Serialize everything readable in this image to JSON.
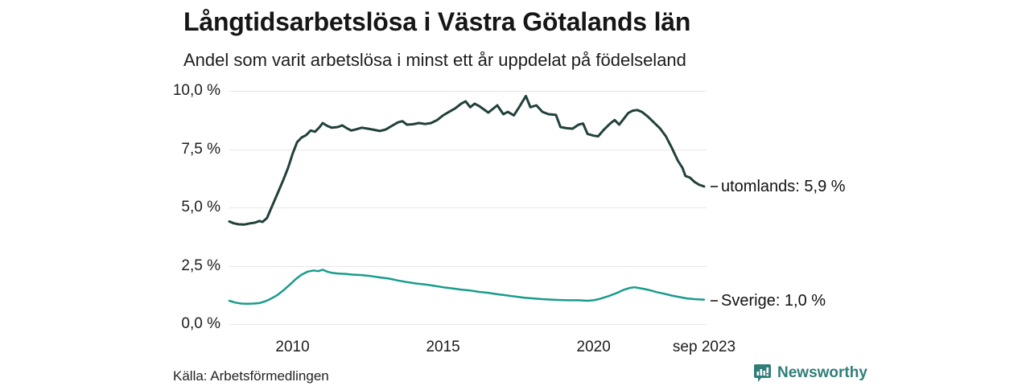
{
  "header": {
    "title": "Långtidsarbetslösa i Västra Götalands län",
    "subtitle": "Andel som varit arbetslösa i minst ett år uppdelat på födelseland"
  },
  "footer": {
    "source": "Källa: Arbetsförmedlingen",
    "brand": "Newsworthy",
    "brand_color": "#2f7e79"
  },
  "chart_data": {
    "type": "line",
    "title": "Långtidsarbetslösa i Västra Götalands län",
    "subtitle": "Andel som varit arbetslösa i minst ett år uppdelat på födelseland",
    "source": "Källa: Arbetsförmedlingen",
    "xlabel": "",
    "ylabel": "",
    "xlim": [
      2007.9,
      2023.75
    ],
    "ylim": [
      0,
      10
    ],
    "grid": "horizontal",
    "grid_color": "#e7e7e7",
    "x_ticks": [
      {
        "label": "2010",
        "year": 2010
      },
      {
        "label": "2015",
        "year": 2015
      },
      {
        "label": "2020",
        "year": 2020
      },
      {
        "label": "sep 2023",
        "year": 2023.67
      }
    ],
    "y_ticks": [
      {
        "label": "0,0 %",
        "value": 0
      },
      {
        "label": "2,5 %",
        "value": 2.5
      },
      {
        "label": "5,0 %",
        "value": 5
      },
      {
        "label": "7,5 %",
        "value": 7.5
      },
      {
        "label": "10,0 %",
        "value": 10
      }
    ],
    "series": [
      {
        "name": "utomlands",
        "label": "utomlands: 5,9 %",
        "end_value": 5.9,
        "color": "#22403b",
        "stroke_width": 3,
        "points": [
          [
            2007.9,
            4.4
          ],
          [
            2008.05,
            4.32
          ],
          [
            2008.2,
            4.28
          ],
          [
            2008.4,
            4.27
          ],
          [
            2008.6,
            4.32
          ],
          [
            2008.75,
            4.35
          ],
          [
            2008.9,
            4.42
          ],
          [
            2009.0,
            4.38
          ],
          [
            2009.15,
            4.55
          ],
          [
            2009.3,
            5.0
          ],
          [
            2009.5,
            5.6
          ],
          [
            2009.7,
            6.2
          ],
          [
            2009.85,
            6.7
          ],
          [
            2010.0,
            7.3
          ],
          [
            2010.15,
            7.8
          ],
          [
            2010.3,
            8.0
          ],
          [
            2010.45,
            8.1
          ],
          [
            2010.6,
            8.3
          ],
          [
            2010.75,
            8.25
          ],
          [
            2010.9,
            8.45
          ],
          [
            2011.0,
            8.62
          ],
          [
            2011.15,
            8.5
          ],
          [
            2011.3,
            8.42
          ],
          [
            2011.5,
            8.45
          ],
          [
            2011.65,
            8.52
          ],
          [
            2011.8,
            8.4
          ],
          [
            2011.95,
            8.3
          ],
          [
            2012.1,
            8.35
          ],
          [
            2012.3,
            8.42
          ],
          [
            2012.5,
            8.38
          ],
          [
            2012.7,
            8.33
          ],
          [
            2012.9,
            8.28
          ],
          [
            2013.1,
            8.35
          ],
          [
            2013.3,
            8.5
          ],
          [
            2013.5,
            8.65
          ],
          [
            2013.65,
            8.7
          ],
          [
            2013.8,
            8.55
          ],
          [
            2014.0,
            8.57
          ],
          [
            2014.2,
            8.62
          ],
          [
            2014.4,
            8.58
          ],
          [
            2014.6,
            8.62
          ],
          [
            2014.8,
            8.75
          ],
          [
            2015.0,
            8.95
          ],
          [
            2015.2,
            9.1
          ],
          [
            2015.4,
            9.25
          ],
          [
            2015.6,
            9.45
          ],
          [
            2015.75,
            9.55
          ],
          [
            2015.9,
            9.3
          ],
          [
            2016.05,
            9.45
          ],
          [
            2016.2,
            9.35
          ],
          [
            2016.5,
            9.07
          ],
          [
            2016.8,
            9.38
          ],
          [
            2017.0,
            9.0
          ],
          [
            2017.15,
            9.1
          ],
          [
            2017.35,
            8.95
          ],
          [
            2017.55,
            9.35
          ],
          [
            2017.75,
            9.78
          ],
          [
            2017.9,
            9.3
          ],
          [
            2018.1,
            9.38
          ],
          [
            2018.3,
            9.1
          ],
          [
            2018.5,
            9.0
          ],
          [
            2018.75,
            8.97
          ],
          [
            2018.9,
            8.45
          ],
          [
            2019.1,
            8.4
          ],
          [
            2019.3,
            8.38
          ],
          [
            2019.5,
            8.55
          ],
          [
            2019.65,
            8.6
          ],
          [
            2019.8,
            8.15
          ],
          [
            2020.0,
            8.08
          ],
          [
            2020.15,
            8.05
          ],
          [
            2020.35,
            8.35
          ],
          [
            2020.55,
            8.6
          ],
          [
            2020.7,
            8.75
          ],
          [
            2020.85,
            8.55
          ],
          [
            2021.0,
            8.8
          ],
          [
            2021.15,
            9.05
          ],
          [
            2021.3,
            9.15
          ],
          [
            2021.45,
            9.18
          ],
          [
            2021.6,
            9.1
          ],
          [
            2021.8,
            8.9
          ],
          [
            2022.0,
            8.65
          ],
          [
            2022.2,
            8.4
          ],
          [
            2022.4,
            8.05
          ],
          [
            2022.6,
            7.55
          ],
          [
            2022.8,
            7.0
          ],
          [
            2022.95,
            6.7
          ],
          [
            2023.05,
            6.35
          ],
          [
            2023.2,
            6.28
          ],
          [
            2023.35,
            6.1
          ],
          [
            2023.5,
            5.98
          ],
          [
            2023.67,
            5.9
          ]
        ]
      },
      {
        "name": "Sverige",
        "label": "Sverige: 1,0 %",
        "end_value": 1.0,
        "color": "#199c8b",
        "stroke_width": 2.5,
        "points": [
          [
            2007.9,
            1.0
          ],
          [
            2008.1,
            0.92
          ],
          [
            2008.3,
            0.88
          ],
          [
            2008.5,
            0.87
          ],
          [
            2008.7,
            0.88
          ],
          [
            2008.9,
            0.9
          ],
          [
            2009.1,
            0.98
          ],
          [
            2009.3,
            1.1
          ],
          [
            2009.5,
            1.25
          ],
          [
            2009.7,
            1.45
          ],
          [
            2009.9,
            1.68
          ],
          [
            2010.1,
            1.92
          ],
          [
            2010.3,
            2.12
          ],
          [
            2010.5,
            2.25
          ],
          [
            2010.7,
            2.3
          ],
          [
            2010.85,
            2.27
          ],
          [
            2011.0,
            2.33
          ],
          [
            2011.15,
            2.25
          ],
          [
            2011.3,
            2.2
          ],
          [
            2011.5,
            2.17
          ],
          [
            2011.75,
            2.15
          ],
          [
            2012.0,
            2.12
          ],
          [
            2012.3,
            2.1
          ],
          [
            2012.6,
            2.06
          ],
          [
            2012.9,
            2.0
          ],
          [
            2013.2,
            1.95
          ],
          [
            2013.5,
            1.87
          ],
          [
            2013.8,
            1.8
          ],
          [
            2014.1,
            1.74
          ],
          [
            2014.4,
            1.7
          ],
          [
            2014.7,
            1.64
          ],
          [
            2015.0,
            1.58
          ],
          [
            2015.3,
            1.53
          ],
          [
            2015.6,
            1.48
          ],
          [
            2015.9,
            1.44
          ],
          [
            2016.2,
            1.38
          ],
          [
            2016.5,
            1.34
          ],
          [
            2016.8,
            1.28
          ],
          [
            2017.1,
            1.23
          ],
          [
            2017.4,
            1.18
          ],
          [
            2017.7,
            1.13
          ],
          [
            2018.0,
            1.1
          ],
          [
            2018.3,
            1.07
          ],
          [
            2018.6,
            1.05
          ],
          [
            2018.9,
            1.03
          ],
          [
            2019.2,
            1.02
          ],
          [
            2019.5,
            1.02
          ],
          [
            2019.8,
            1.0
          ],
          [
            2020.0,
            1.02
          ],
          [
            2020.2,
            1.08
          ],
          [
            2020.5,
            1.2
          ],
          [
            2020.8,
            1.35
          ],
          [
            2021.0,
            1.47
          ],
          [
            2021.2,
            1.55
          ],
          [
            2021.35,
            1.58
          ],
          [
            2021.5,
            1.55
          ],
          [
            2021.7,
            1.5
          ],
          [
            2021.9,
            1.44
          ],
          [
            2022.1,
            1.37
          ],
          [
            2022.35,
            1.3
          ],
          [
            2022.6,
            1.22
          ],
          [
            2022.85,
            1.16
          ],
          [
            2023.1,
            1.1
          ],
          [
            2023.35,
            1.07
          ],
          [
            2023.67,
            1.05
          ]
        ]
      }
    ],
    "leader_dash_color": "#333333"
  }
}
